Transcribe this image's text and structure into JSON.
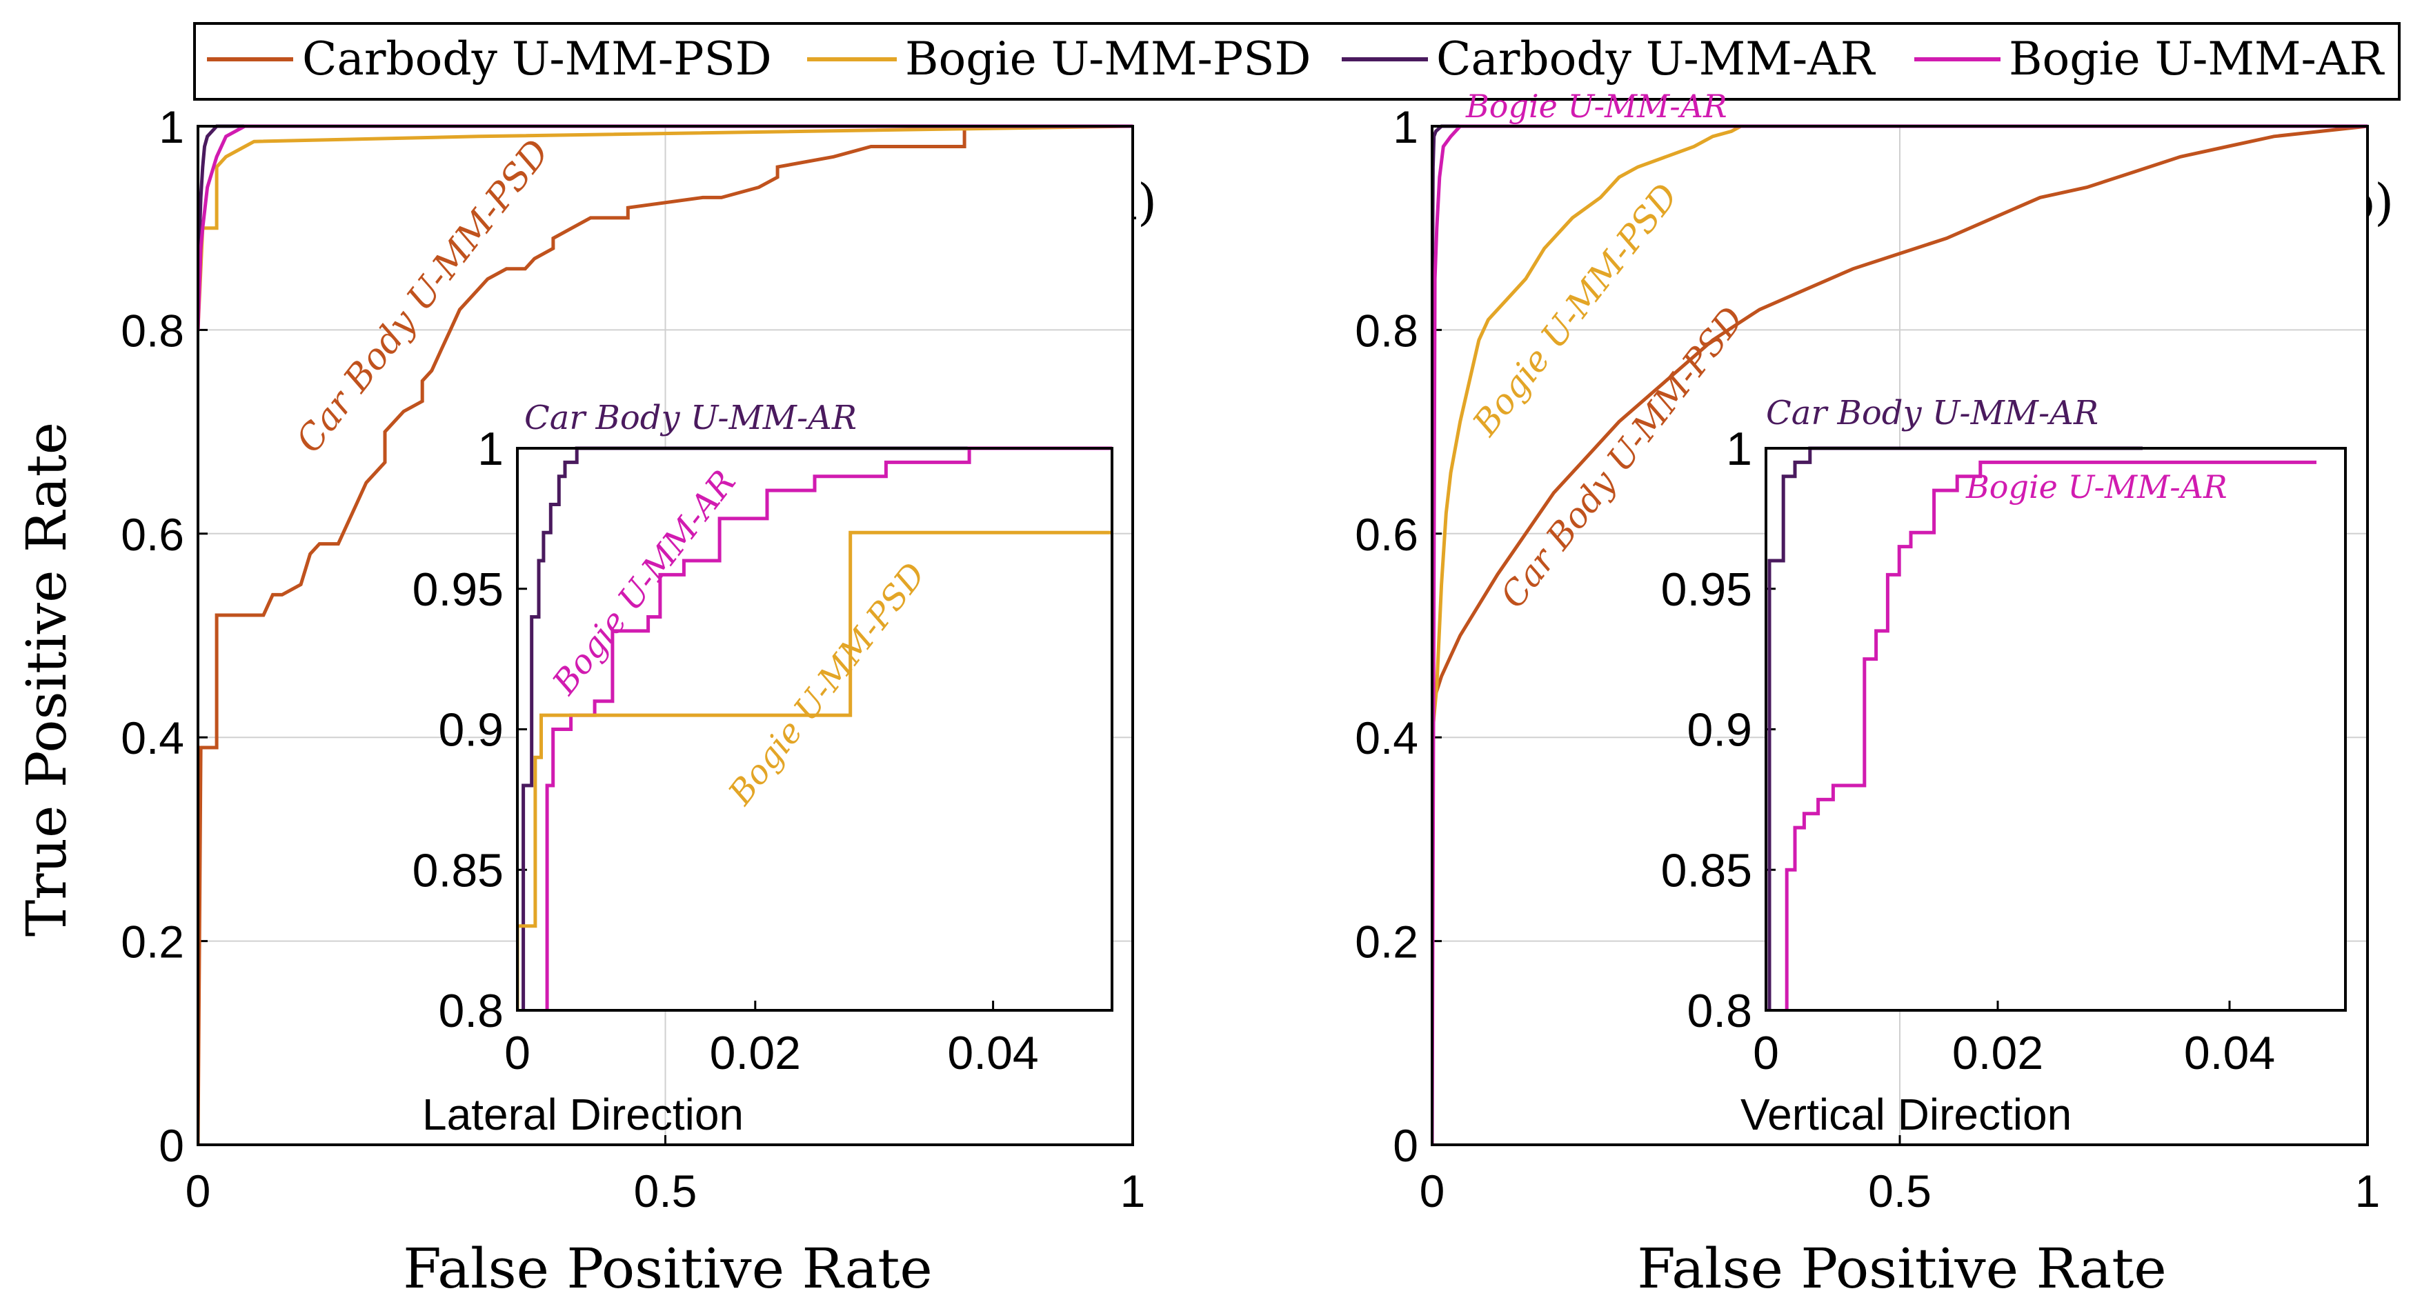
{
  "legend": [
    {
      "label": "Carbody U-MM-PSD",
      "color": "#c0521d"
    },
    {
      "label": "Bogie U-MM-PSD",
      "color": "#e3a526"
    },
    {
      "label": "Carbody U-MM-AR",
      "color": "#4a1a5e"
    },
    {
      "label": "Bogie U-MM-AR",
      "color": "#d11bb0"
    }
  ],
  "chart_data": [
    {
      "id": "a",
      "type": "line",
      "panel_label": "(a)",
      "xlabel": "False Positive Rate",
      "ylabel": "True Positive Rate",
      "xlim": [
        0,
        1
      ],
      "ylim": [
        0,
        1
      ],
      "xticks": [
        0,
        0.5,
        1
      ],
      "xtick_labels": [
        "0",
        "0.5",
        "1"
      ],
      "yticks": [
        0,
        0.2,
        0.4,
        0.6,
        0.8,
        1
      ],
      "ytick_labels": [
        "0",
        "0.2",
        "0.4",
        "0.6",
        "0.8",
        "1"
      ],
      "grid": true,
      "caption": "Lateral Direction",
      "series": [
        {
          "name": "Carbody U-MM-PSD",
          "color": "#c0521d",
          "x": [
            0,
            0.003,
            0.02,
            0.02,
            0.07,
            0.08,
            0.09,
            0.11,
            0.12,
            0.13,
            0.15,
            0.17,
            0.18,
            0.2,
            0.2,
            0.22,
            0.24,
            0.24,
            0.25,
            0.26,
            0.27,
            0.28,
            0.3,
            0.31,
            0.33,
            0.35,
            0.36,
            0.38,
            0.38,
            0.4,
            0.42,
            0.46,
            0.46,
            0.54,
            0.56,
            0.6,
            0.62,
            0.62,
            0.68,
            0.72,
            0.82,
            0.82,
            1.0
          ],
          "y": [
            0,
            0.39,
            0.39,
            0.52,
            0.52,
            0.54,
            0.54,
            0.55,
            0.58,
            0.59,
            0.59,
            0.63,
            0.65,
            0.67,
            0.7,
            0.72,
            0.73,
            0.75,
            0.76,
            0.78,
            0.8,
            0.82,
            0.84,
            0.85,
            0.86,
            0.86,
            0.87,
            0.88,
            0.89,
            0.9,
            0.91,
            0.91,
            0.92,
            0.93,
            0.93,
            0.94,
            0.95,
            0.96,
            0.97,
            0.98,
            0.98,
            1.0,
            1.0
          ]
        },
        {
          "name": "Bogie U-MM-PSD",
          "color": "#e3a526",
          "x": [
            0,
            0.005,
            0.02,
            0.02,
            0.03,
            0.05,
            0.06,
            0.3,
            1.0
          ],
          "y": [
            0.8,
            0.9,
            0.9,
            0.96,
            0.97,
            0.98,
            0.985,
            0.99,
            1.0
          ]
        },
        {
          "name": "Carbody U-MM-AR",
          "color": "#4a1a5e",
          "x": [
            0,
            0.003,
            0.005,
            0.007,
            0.01,
            0.015,
            0.02,
            0.04,
            1.0
          ],
          "y": [
            0.85,
            0.93,
            0.96,
            0.98,
            0.99,
            0.995,
            1.0,
            1.0,
            1.0
          ]
        },
        {
          "name": "Bogie U-MM-AR",
          "color": "#d11bb0",
          "x": [
            0,
            0.003,
            0.005,
            0.01,
            0.02,
            0.03,
            0.05,
            1.0
          ],
          "y": [
            0.8,
            0.88,
            0.9,
            0.94,
            0.97,
            0.99,
            1.0,
            1.0
          ]
        }
      ],
      "inset": {
        "title": "Car Body U-MM-AR",
        "xlim": [
          0,
          0.05
        ],
        "ylim": [
          0.8,
          1
        ],
        "xticks": [
          0,
          0.02,
          0.04
        ],
        "xtick_labels": [
          "0",
          "0.02",
          "0.04"
        ],
        "yticks": [
          0.8,
          0.85,
          0.9,
          0.95,
          1
        ],
        "ytick_labels": [
          "0.8",
          "0.85",
          "0.9",
          "0.95",
          "1"
        ],
        "series": [
          {
            "name": "Carbody U-MM-AR",
            "color": "#4a1a5e",
            "x": [
              0.0005,
              0.0005,
              0.0012,
              0.0012,
              0.0018,
              0.0018,
              0.0022,
              0.0022,
              0.0028,
              0.0028,
              0.0035,
              0.0035,
              0.004,
              0.004,
              0.005,
              0.005,
              0.05
            ],
            "y": [
              0.8,
              0.88,
              0.88,
              0.94,
              0.94,
              0.96,
              0.96,
              0.97,
              0.97,
              0.98,
              0.98,
              0.99,
              0.99,
              0.995,
              0.995,
              1.0,
              1.0
            ]
          },
          {
            "name": "Bogie U-MM-AR",
            "color": "#d11bb0",
            "x": [
              0.0025,
              0.0025,
              0.003,
              0.003,
              0.0045,
              0.0045,
              0.0065,
              0.0065,
              0.008,
              0.008,
              0.011,
              0.011,
              0.012,
              0.012,
              0.014,
              0.014,
              0.017,
              0.017,
              0.021,
              0.021,
              0.025,
              0.025,
              0.031,
              0.031,
              0.038,
              0.038,
              0.05
            ],
            "y": [
              0.8,
              0.88,
              0.88,
              0.9,
              0.9,
              0.905,
              0.905,
              0.91,
              0.91,
              0.935,
              0.935,
              0.94,
              0.94,
              0.955,
              0.955,
              0.96,
              0.96,
              0.975,
              0.975,
              0.985,
              0.985,
              0.99,
              0.99,
              0.995,
              0.995,
              1.0,
              1.0
            ]
          },
          {
            "name": "Bogie U-MM-PSD",
            "color": "#e3a526",
            "x": [
              0.0,
              0.0,
              0.0015,
              0.0015,
              0.002,
              0.002,
              0.028,
              0.028,
              0.028,
              0.032,
              0.032,
              0.05
            ],
            "y": [
              0.8,
              0.83,
              0.83,
              0.89,
              0.89,
              0.905,
              0.905,
              0.94,
              0.97,
              0.97,
              0.97,
              0.97
            ]
          }
        ]
      },
      "annotations": [
        {
          "text": "Car Body U-MM-PSD",
          "color": "#c0521d"
        },
        {
          "text": "Bogie U-MM-AR",
          "color": "#d11bb0"
        },
        {
          "text": "Bogie U-MM-PSD",
          "color": "#e3a526"
        }
      ]
    },
    {
      "id": "b",
      "type": "line",
      "panel_label": "(b)",
      "xlabel": "False Positive Rate",
      "ylabel": "",
      "xlim": [
        0,
        1
      ],
      "ylim": [
        0,
        1
      ],
      "xticks": [
        0,
        0.5,
        1
      ],
      "xtick_labels": [
        "0",
        "0.5",
        "1"
      ],
      "yticks": [
        0,
        0.2,
        0.4,
        0.6,
        0.8,
        1
      ],
      "ytick_labels": [
        "0",
        "0.2",
        "0.4",
        "0.6",
        "0.8",
        "1"
      ],
      "grid": true,
      "caption": "Vertical Direction",
      "series": [
        {
          "name": "Carbody U-MM-PSD",
          "color": "#c0521d",
          "x": [
            0,
            0.003,
            0.01,
            0.02,
            0.03,
            0.05,
            0.07,
            0.1,
            0.13,
            0.16,
            0.2,
            0.25,
            0.3,
            0.35,
            0.4,
            0.45,
            0.5,
            0.55,
            0.6,
            0.65,
            0.7,
            0.75,
            0.8,
            0.85,
            0.9,
            0.95,
            1.0
          ],
          "y": [
            0.4,
            0.44,
            0.46,
            0.48,
            0.5,
            0.53,
            0.56,
            0.6,
            0.64,
            0.67,
            0.71,
            0.75,
            0.79,
            0.82,
            0.84,
            0.86,
            0.875,
            0.89,
            0.91,
            0.93,
            0.94,
            0.955,
            0.97,
            0.98,
            0.99,
            0.995,
            1.0
          ]
        },
        {
          "name": "Bogie U-MM-PSD",
          "color": "#e3a526",
          "x": [
            0,
            0.005,
            0.01,
            0.015,
            0.02,
            0.03,
            0.04,
            0.05,
            0.06,
            0.08,
            0.1,
            0.12,
            0.15,
            0.18,
            0.2,
            0.22,
            0.25,
            0.28,
            0.3,
            0.32,
            0.33,
            1.0
          ],
          "y": [
            0.4,
            0.45,
            0.55,
            0.62,
            0.66,
            0.71,
            0.75,
            0.79,
            0.81,
            0.83,
            0.85,
            0.88,
            0.91,
            0.93,
            0.95,
            0.96,
            0.97,
            0.98,
            0.99,
            0.995,
            1.0,
            1.0
          ]
        },
        {
          "name": "Carbody U-MM-AR",
          "color": "#4a1a5e",
          "x": [
            0,
            0.001,
            0.002,
            0.004,
            0.01,
            1.0
          ],
          "y": [
            0.8,
            0.96,
            0.99,
            0.995,
            1.0,
            1.0
          ]
        },
        {
          "name": "Bogie U-MM-AR",
          "color": "#d11bb0",
          "x": [
            0,
            0.003,
            0.005,
            0.008,
            0.012,
            0.02,
            0.03,
            1.0
          ],
          "y": [
            0,
            0.85,
            0.9,
            0.95,
            0.98,
            0.99,
            1.0,
            1.0
          ]
        }
      ],
      "inset": {
        "title": "Car Body U-MM-AR",
        "xlim": [
          0,
          0.05
        ],
        "ylim": [
          0.8,
          1
        ],
        "xticks": [
          0,
          0.02,
          0.04
        ],
        "xtick_labels": [
          "0",
          "0.02",
          "0.04"
        ],
        "yticks": [
          0.8,
          0.85,
          0.9,
          0.95,
          1
        ],
        "ytick_labels": [
          "0.8",
          "0.85",
          "0.9",
          "0.95",
          "1"
        ],
        "series": [
          {
            "name": "Carbody U-MM-AR",
            "color": "#4a1a5e",
            "x": [
              0.0003,
              0.0003,
              0.0015,
              0.0015,
              0.0025,
              0.0025,
              0.0038,
              0.0038,
              0.0325
            ],
            "y": [
              0.8,
              0.96,
              0.96,
              0.99,
              0.99,
              0.995,
              0.995,
              1.0,
              1.0
            ]
          },
          {
            "name": "Bogie U-MM-AR",
            "color": "#d11bb0",
            "x": [
              0.0018,
              0.0018,
              0.0025,
              0.0025,
              0.0033,
              0.0033,
              0.0045,
              0.0045,
              0.0058,
              0.0058,
              0.0085,
              0.0085,
              0.0095,
              0.0095,
              0.0105,
              0.0105,
              0.0115,
              0.0115,
              0.0125,
              0.0125,
              0.0145,
              0.0145,
              0.0165,
              0.0165,
              0.0185,
              0.0185,
              0.0475
            ],
            "y": [
              0.8,
              0.85,
              0.85,
              0.865,
              0.865,
              0.87,
              0.87,
              0.875,
              0.875,
              0.88,
              0.88,
              0.925,
              0.925,
              0.935,
              0.935,
              0.955,
              0.955,
              0.965,
              0.965,
              0.97,
              0.97,
              0.985,
              0.985,
              0.99,
              0.99,
              0.995,
              0.995
            ]
          }
        ]
      },
      "annotations": [
        {
          "text": "Bogie U-MM-AR",
          "color": "#d11bb0"
        },
        {
          "text": "Bogie U-MM-PSD",
          "color": "#e3a526"
        },
        {
          "text": "Car Body U-MM-PSD",
          "color": "#c0521d"
        },
        {
          "text": "Bogie U-MM-AR",
          "color": "#d11bb0"
        }
      ]
    }
  ]
}
